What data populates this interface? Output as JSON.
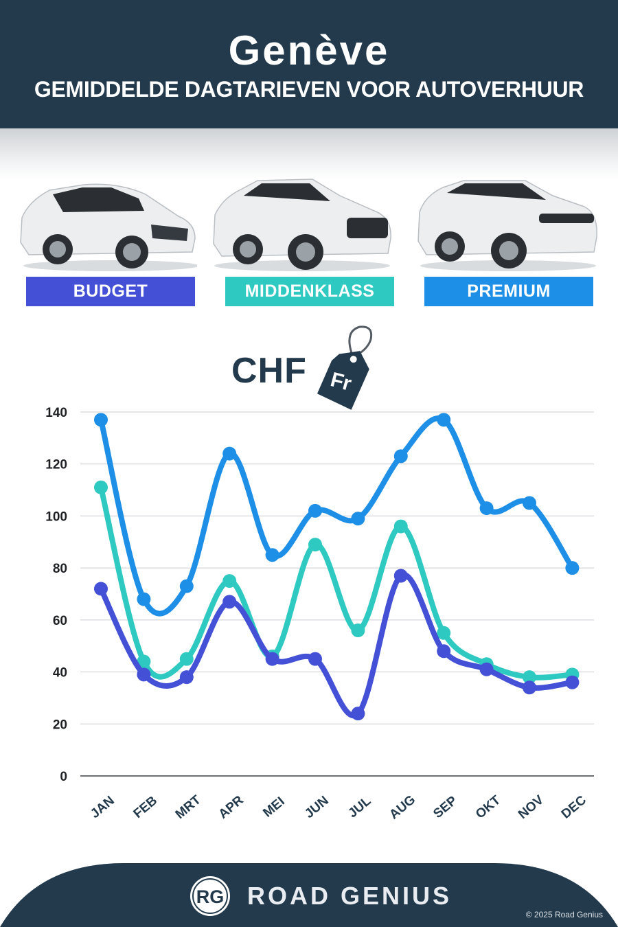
{
  "header": {
    "city": "Genève",
    "subtitle": "GEMIDDELDE DAGTARIEVEN VOOR AUTOVERHUUR"
  },
  "categories": [
    {
      "label": "BUDGET",
      "color": "#4450d6"
    },
    {
      "label": "MIDDENKLASS",
      "color": "#2ec9c0"
    },
    {
      "label": "PREMIUM",
      "color": "#1e8fe6"
    }
  ],
  "currency": {
    "code": "CHF",
    "tag_symbol": "Fr"
  },
  "chart_data": {
    "type": "line",
    "categories": [
      "JAN",
      "FEB",
      "MRT",
      "APR",
      "MEI",
      "JUN",
      "JUL",
      "AUG",
      "SEP",
      "OKT",
      "NOV",
      "DEC"
    ],
    "series": [
      {
        "name": "PREMIUM",
        "color": "#1e8fe6",
        "values": [
          137,
          68,
          73,
          124,
          85,
          102,
          99,
          123,
          137,
          103,
          105,
          80
        ]
      },
      {
        "name": "MIDDENKLASS",
        "color": "#2ec9c0",
        "values": [
          111,
          44,
          45,
          75,
          46,
          89,
          56,
          96,
          55,
          43,
          38,
          39
        ]
      },
      {
        "name": "BUDGET",
        "color": "#4450d6",
        "values": [
          72,
          39,
          38,
          67,
          45,
          45,
          24,
          77,
          48,
          41,
          34,
          36
        ]
      }
    ],
    "yticks": [
      0,
      20,
      40,
      60,
      80,
      100,
      120,
      140
    ],
    "ylim": [
      0,
      140
    ],
    "title": "",
    "xlabel": "",
    "ylabel": "",
    "grid": true,
    "legend": "above chart"
  },
  "footer": {
    "logo_text": "RG",
    "brand": "ROAD GENIUS",
    "copyright": "© 2025 Road Genius"
  },
  "colors": {
    "navy": "#223a4c"
  }
}
